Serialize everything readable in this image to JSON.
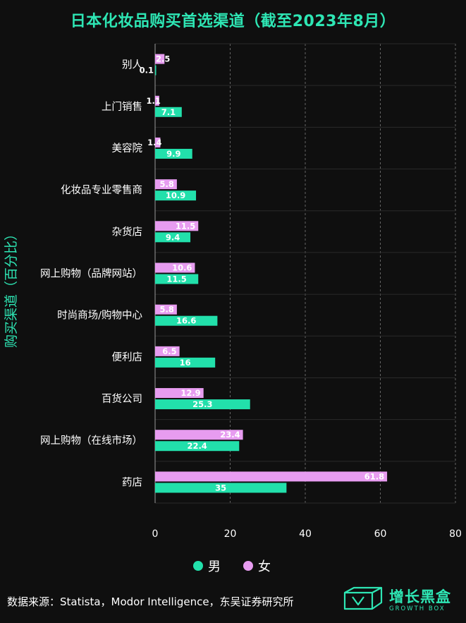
{
  "title": "日本化妆品购买首选渠道（截至2023年8月）",
  "footer": {
    "source": "数据来源：Statista，Modor Intelligence，东吴证券研究所",
    "logo_main": "增长黑盒",
    "logo_sub": "GROWTH BOX"
  },
  "colors": {
    "male": "#22e0ab",
    "female": "#e79cf0",
    "accent": "#2ee6b4",
    "background": "#0f0f0f"
  },
  "chart_data": {
    "type": "bar",
    "orientation": "horizontal",
    "ylabel": "购买渠道（百分比）",
    "xlabel": "",
    "xlim": [
      0,
      80
    ],
    "xticks": [
      0,
      20,
      40,
      60,
      80
    ],
    "grid": true,
    "legend_position": "bottom",
    "categories": [
      "别人",
      "上门销售",
      "美容院",
      "化妆品专业零售商",
      "杂货店",
      "网上购物（品牌网站）",
      "时尚商场/购物中心",
      "便利店",
      "百货公司",
      "网上购物（在线市场）",
      "药店"
    ],
    "series": [
      {
        "name": "男",
        "values": [
          0.1,
          7.1,
          9.9,
          10.9,
          9.4,
          11.5,
          16.6,
          16,
          25.3,
          22.4,
          35
        ],
        "labels": [
          "0.1",
          "7.1",
          "9.9",
          "10.9",
          "9.4",
          "11.5",
          "16.6",
          "16",
          "25.3",
          "22.4",
          "35"
        ]
      },
      {
        "name": "女",
        "values": [
          2.5,
          1.1,
          1.4,
          5.8,
          11.5,
          10.6,
          5.8,
          6.5,
          12.9,
          23.4,
          61.8
        ],
        "labels": [
          "2.5",
          "1.1",
          "1.4",
          "5.8",
          "11.5",
          "10.6",
          "5.8",
          "6.5",
          "12.9",
          "23.4",
          "61.8"
        ]
      }
    ]
  }
}
